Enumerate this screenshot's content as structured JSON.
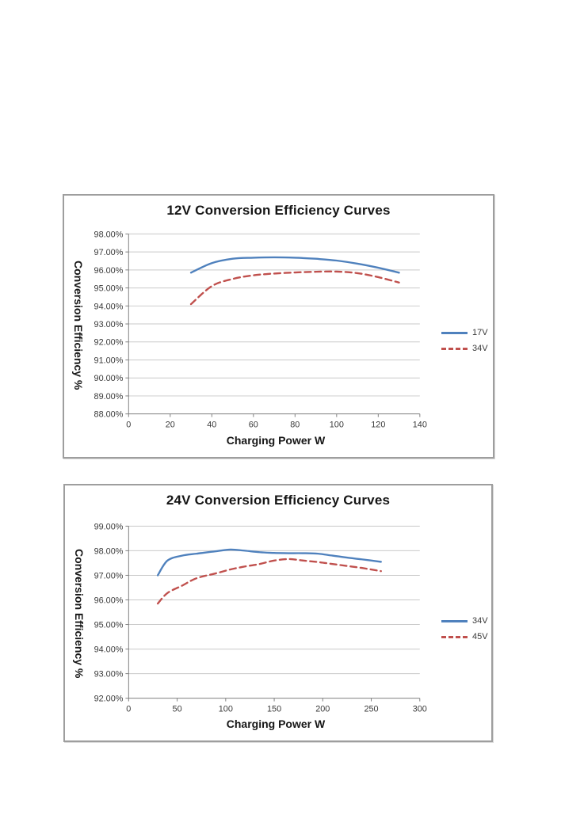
{
  "page": {
    "background": "#ffffff"
  },
  "colors": {
    "series_blue": "#4f81bd",
    "series_red": "#c0504d",
    "gridline": "#c9c9c9",
    "axis": "#808080",
    "frame_border": "#9e9e9e",
    "tick_text": "#3a3a3a"
  },
  "chart_data": [
    {
      "type": "line",
      "title": "12V Conversion Efficiency Curves",
      "xlabel": "Charging Power W",
      "ylabel": "Conversion Efficiency %",
      "xlim": [
        0,
        140
      ],
      "ylim": [
        88,
        98
      ],
      "x_tick_labels": [
        "0",
        "20",
        "40",
        "60",
        "80",
        "100",
        "120",
        "140"
      ],
      "y_tick_labels": [
        "98.00%",
        "97.00%",
        "96.00%",
        "95.00%",
        "94.00%",
        "93.00%",
        "92.00%",
        "91.00%",
        "90.00%",
        "89.00%",
        "88.00%"
      ],
      "grid": "horizontal",
      "legend_position": "right",
      "series": [
        {
          "name": "17V",
          "color": "#4f81bd",
          "line": "solid",
          "x": [
            30,
            40,
            50,
            60,
            70,
            80,
            90,
            100,
            110,
            120,
            130
          ],
          "y": [
            95.85,
            96.38,
            96.62,
            96.68,
            96.7,
            96.68,
            96.62,
            96.52,
            96.35,
            96.12,
            95.85
          ]
        },
        {
          "name": "34V",
          "color": "#c0504d",
          "line": "dashed",
          "x": [
            30,
            40,
            50,
            60,
            70,
            80,
            90,
            100,
            110,
            120,
            130
          ],
          "y": [
            94.1,
            95.1,
            95.5,
            95.7,
            95.8,
            95.86,
            95.9,
            95.91,
            95.82,
            95.6,
            95.3
          ]
        }
      ]
    },
    {
      "type": "line",
      "title": "24V Conversion Efficiency Curves",
      "xlabel": "Charging Power W",
      "ylabel": "Conversion Efficiency %",
      "xlim": [
        0,
        300
      ],
      "ylim": [
        92,
        99
      ],
      "x_tick_labels": [
        "0",
        "50",
        "100",
        "150",
        "200",
        "250",
        "300"
      ],
      "y_tick_labels": [
        "99.00%",
        "98.00%",
        "97.00%",
        "96.00%",
        "95.00%",
        "94.00%",
        "93.00%",
        "92.00%"
      ],
      "grid": "horizontal",
      "legend_position": "right",
      "series": [
        {
          "name": "34V",
          "color": "#4f81bd",
          "line": "solid",
          "x": [
            30,
            40,
            55,
            70,
            90,
            105,
            120,
            135,
            150,
            165,
            180,
            195,
            210,
            225,
            240,
            260
          ],
          "y": [
            97.0,
            97.6,
            97.8,
            97.88,
            97.98,
            98.05,
            98.0,
            97.94,
            97.91,
            97.9,
            97.9,
            97.88,
            97.8,
            97.72,
            97.65,
            97.55
          ]
        },
        {
          "name": "45V",
          "color": "#c0504d",
          "line": "dashed",
          "x": [
            30,
            40,
            55,
            70,
            90,
            105,
            120,
            135,
            150,
            165,
            180,
            195,
            210,
            225,
            240,
            260
          ],
          "y": [
            95.85,
            96.28,
            96.58,
            96.88,
            97.08,
            97.24,
            97.36,
            97.46,
            97.6,
            97.66,
            97.6,
            97.54,
            97.46,
            97.38,
            97.3,
            97.17
          ]
        }
      ]
    }
  ]
}
